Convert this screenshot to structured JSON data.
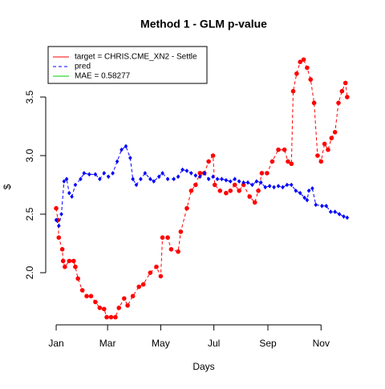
{
  "chart_data": {
    "type": "line",
    "title": "Method 1 - GLM p-value",
    "xlabel": "Days",
    "ylabel": "$",
    "xlim": [
      -12,
      347
    ],
    "ylim": [
      1.55,
      3.9
    ],
    "xticks": [
      {
        "value": 0,
        "label": "Jan"
      },
      {
        "value": 59,
        "label": "Mar"
      },
      {
        "value": 120,
        "label": "May"
      },
      {
        "value": 181,
        "label": "Jul"
      },
      {
        "value": 243,
        "label": "Sep"
      },
      {
        "value": 304,
        "label": "Nov"
      }
    ],
    "yticks": [
      {
        "value": 2,
        "label": "2.0"
      },
      2.5,
      {
        "value": 3,
        "label": "3.0"
      },
      3.5
    ],
    "series": [
      {
        "name": "target = CHRIS.CME_XN2 - Settle",
        "color": "#ff0000",
        "x": [
          0,
          2,
          3,
          7,
          8,
          10,
          15,
          20,
          22,
          25,
          30,
          35,
          40,
          45,
          50,
          55,
          58,
          63,
          68,
          72,
          78,
          82,
          88,
          95,
          100,
          108,
          115,
          120,
          122,
          128,
          132,
          140,
          143,
          150,
          155,
          160,
          165,
          170,
          175,
          180,
          182,
          188,
          195,
          200,
          205,
          210,
          215,
          222,
          228,
          232,
          236,
          242,
          248,
          255,
          262,
          266,
          270,
          272,
          276,
          280,
          284,
          288,
          292,
          296,
          300,
          304,
          308,
          312,
          316,
          320,
          324,
          328,
          332,
          334
        ],
        "values": [
          2.55,
          2.45,
          2.3,
          2.2,
          2.1,
          2.05,
          2.1,
          2.1,
          2.05,
          1.95,
          1.85,
          1.8,
          1.8,
          1.75,
          1.7,
          1.69,
          1.62,
          1.62,
          1.62,
          1.7,
          1.78,
          1.72,
          1.8,
          1.88,
          1.9,
          2.0,
          2.05,
          1.97,
          2.3,
          2.3,
          2.2,
          2.18,
          2.35,
          2.55,
          2.7,
          2.75,
          2.85,
          2.85,
          2.95,
          3.0,
          2.75,
          2.7,
          2.68,
          2.7,
          2.75,
          2.7,
          2.75,
          2.65,
          2.6,
          2.7,
          2.85,
          2.85,
          2.95,
          3.05,
          3.05,
          2.95,
          2.93,
          3.55,
          3.7,
          3.8,
          3.82,
          3.75,
          3.65,
          3.45,
          3.0,
          2.95,
          3.1,
          3.05,
          3.15,
          3.2,
          3.45,
          3.55,
          3.62,
          3.5
        ]
      },
      {
        "name": "pred",
        "color": "#0000ff",
        "x": [
          0,
          3,
          6,
          9,
          12,
          15,
          18,
          22,
          28,
          32,
          38,
          45,
          50,
          55,
          60,
          65,
          70,
          75,
          80,
          85,
          88,
          92,
          97,
          102,
          108,
          112,
          118,
          122,
          128,
          135,
          140,
          145,
          150,
          155,
          160,
          165,
          170,
          175,
          180,
          185,
          190,
          195,
          200,
          205,
          210,
          215,
          220,
          225,
          230,
          235,
          240,
          245,
          250,
          255,
          260,
          265,
          270,
          275,
          280,
          285,
          288,
          290,
          294,
          298,
          305,
          310,
          315,
          320,
          325,
          330,
          334
        ],
        "values": [
          2.45,
          2.4,
          2.5,
          2.78,
          2.8,
          2.68,
          2.65,
          2.75,
          2.8,
          2.85,
          2.84,
          2.84,
          2.8,
          2.85,
          2.82,
          2.85,
          2.95,
          3.05,
          3.08,
          2.98,
          2.8,
          2.75,
          2.8,
          2.85,
          2.8,
          2.78,
          2.82,
          2.85,
          2.8,
          2.8,
          2.82,
          2.88,
          2.87,
          2.85,
          2.83,
          2.82,
          2.85,
          2.8,
          2.82,
          2.8,
          2.8,
          2.79,
          2.78,
          2.8,
          2.78,
          2.77,
          2.77,
          2.75,
          2.78,
          2.77,
          2.73,
          2.74,
          2.73,
          2.74,
          2.73,
          2.75,
          2.75,
          2.7,
          2.68,
          2.64,
          2.62,
          2.7,
          2.72,
          2.58,
          2.57,
          2.57,
          2.52,
          2.52,
          2.5,
          2.48,
          2.47
        ]
      }
    ],
    "legend_extra": {
      "label": "MAE = 0.58277",
      "color": "#00cc00"
    },
    "legend": "top-left"
  }
}
